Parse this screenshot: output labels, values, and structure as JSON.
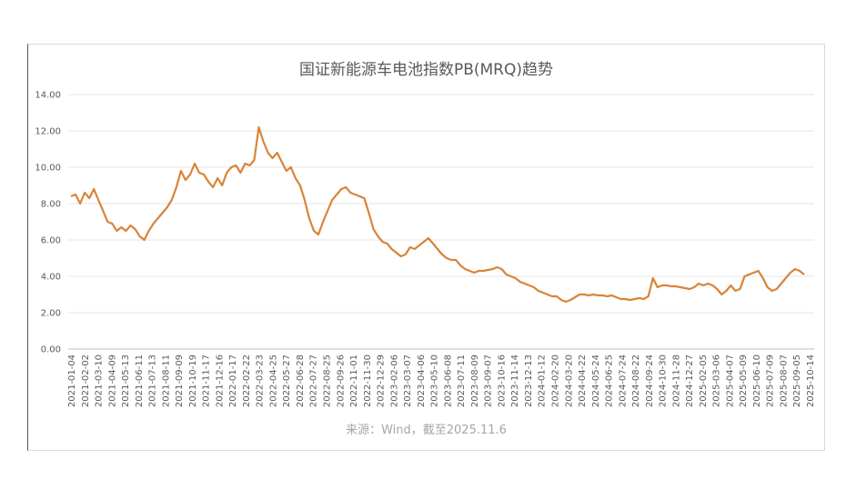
{
  "chart_data": {
    "type": "line",
    "title": "国证新能源车电池指数PB(MRQ)趋势",
    "source": "来源：Wind，截至2025.11.6",
    "xlabel": "",
    "ylabel": "",
    "ylim": [
      0,
      14
    ],
    "yticks": [
      "0.00",
      "2.00",
      "4.00",
      "6.00",
      "8.00",
      "10.00",
      "12.00",
      "14.00"
    ],
    "grid": true,
    "legend": "none",
    "line_color": "#d9843a",
    "x_tick_labels": [
      "2021-01-04",
      "2021-02-02",
      "2021-03-10",
      "2021-04-09",
      "2021-05-13",
      "2021-06-11",
      "2021-07-13",
      "2021-08-11",
      "2021-09-09",
      "2021-10-19",
      "2021-11-17",
      "2021-12-16",
      "2022-01-17",
      "2022-02-22",
      "2022-03-23",
      "2022-04-25",
      "2022-05-27",
      "2022-06-28",
      "2022-07-27",
      "2022-08-25",
      "2022-09-26",
      "2022-11-01",
      "2022-11-30",
      "2022-12-29",
      "2023-02-06",
      "2023-03-07",
      "2023-04-06",
      "2023-05-10",
      "2023-06-08",
      "2023-07-11",
      "2023-08-09",
      "2023-09-07",
      "2023-10-16",
      "2023-11-14",
      "2023-12-13",
      "2024-01-12",
      "2024-02-20",
      "2024-03-20",
      "2024-04-22",
      "2024-05-24",
      "2024-06-25",
      "2024-07-24",
      "2024-08-22",
      "2024-09-24",
      "2024-10-30",
      "2024-11-28",
      "2024-12-27",
      "2025-02-05",
      "2025-03-06",
      "2025-04-07",
      "2025-05-09",
      "2025-06-10",
      "2025-07-09",
      "2025-08-07",
      "2025-09-05",
      "2025-10-14"
    ],
    "series": [
      {
        "values": [
          8.4,
          8.5,
          8.0,
          8.6,
          8.3,
          8.8,
          8.2,
          7.6,
          7.0,
          6.9,
          6.5,
          6.7,
          6.5,
          6.8,
          6.6,
          6.2,
          6.0,
          6.5,
          6.9,
          7.2,
          7.5,
          7.8,
          8.2,
          8.9,
          9.8,
          9.3,
          9.6,
          10.2,
          9.7,
          9.6,
          9.2,
          8.9,
          9.4,
          9.0,
          9.7,
          10.0,
          10.1,
          9.7,
          10.2,
          10.1,
          10.4,
          12.2,
          11.4,
          10.8,
          10.5,
          10.8,
          10.3,
          9.8,
          10.0,
          9.4,
          9.0,
          8.2,
          7.2,
          6.5,
          6.3,
          7.0,
          7.6,
          8.2,
          8.5,
          8.8,
          8.9,
          8.6,
          8.5,
          8.4,
          8.3,
          7.5,
          6.6,
          6.2,
          5.9,
          5.8,
          5.5,
          5.3,
          5.1,
          5.2,
          5.6,
          5.5,
          5.7,
          5.9,
          6.1,
          5.8,
          5.5,
          5.2,
          5.0,
          4.9,
          4.9,
          4.6,
          4.4,
          4.3,
          4.2,
          4.3,
          4.3,
          4.35,
          4.4,
          4.5,
          4.4,
          4.1,
          4.0,
          3.9,
          3.7,
          3.6,
          3.5,
          3.4,
          3.2,
          3.1,
          3.0,
          2.9,
          2.9,
          2.7,
          2.6,
          2.7,
          2.85,
          3.0,
          3.0,
          2.95,
          3.0,
          2.95,
          2.95,
          2.9,
          2.95,
          2.85,
          2.75,
          2.75,
          2.7,
          2.75,
          2.8,
          2.75,
          2.9,
          3.9,
          3.4,
          3.5,
          3.5,
          3.45,
          3.45,
          3.4,
          3.35,
          3.3,
          3.4,
          3.6,
          3.5,
          3.6,
          3.5,
          3.3,
          3.0,
          3.2,
          3.5,
          3.2,
          3.3,
          4.0,
          4.1,
          4.2,
          4.3,
          3.9,
          3.4,
          3.2,
          3.3,
          3.6,
          3.9,
          4.2,
          4.4,
          4.3,
          4.1
        ]
      }
    ]
  }
}
